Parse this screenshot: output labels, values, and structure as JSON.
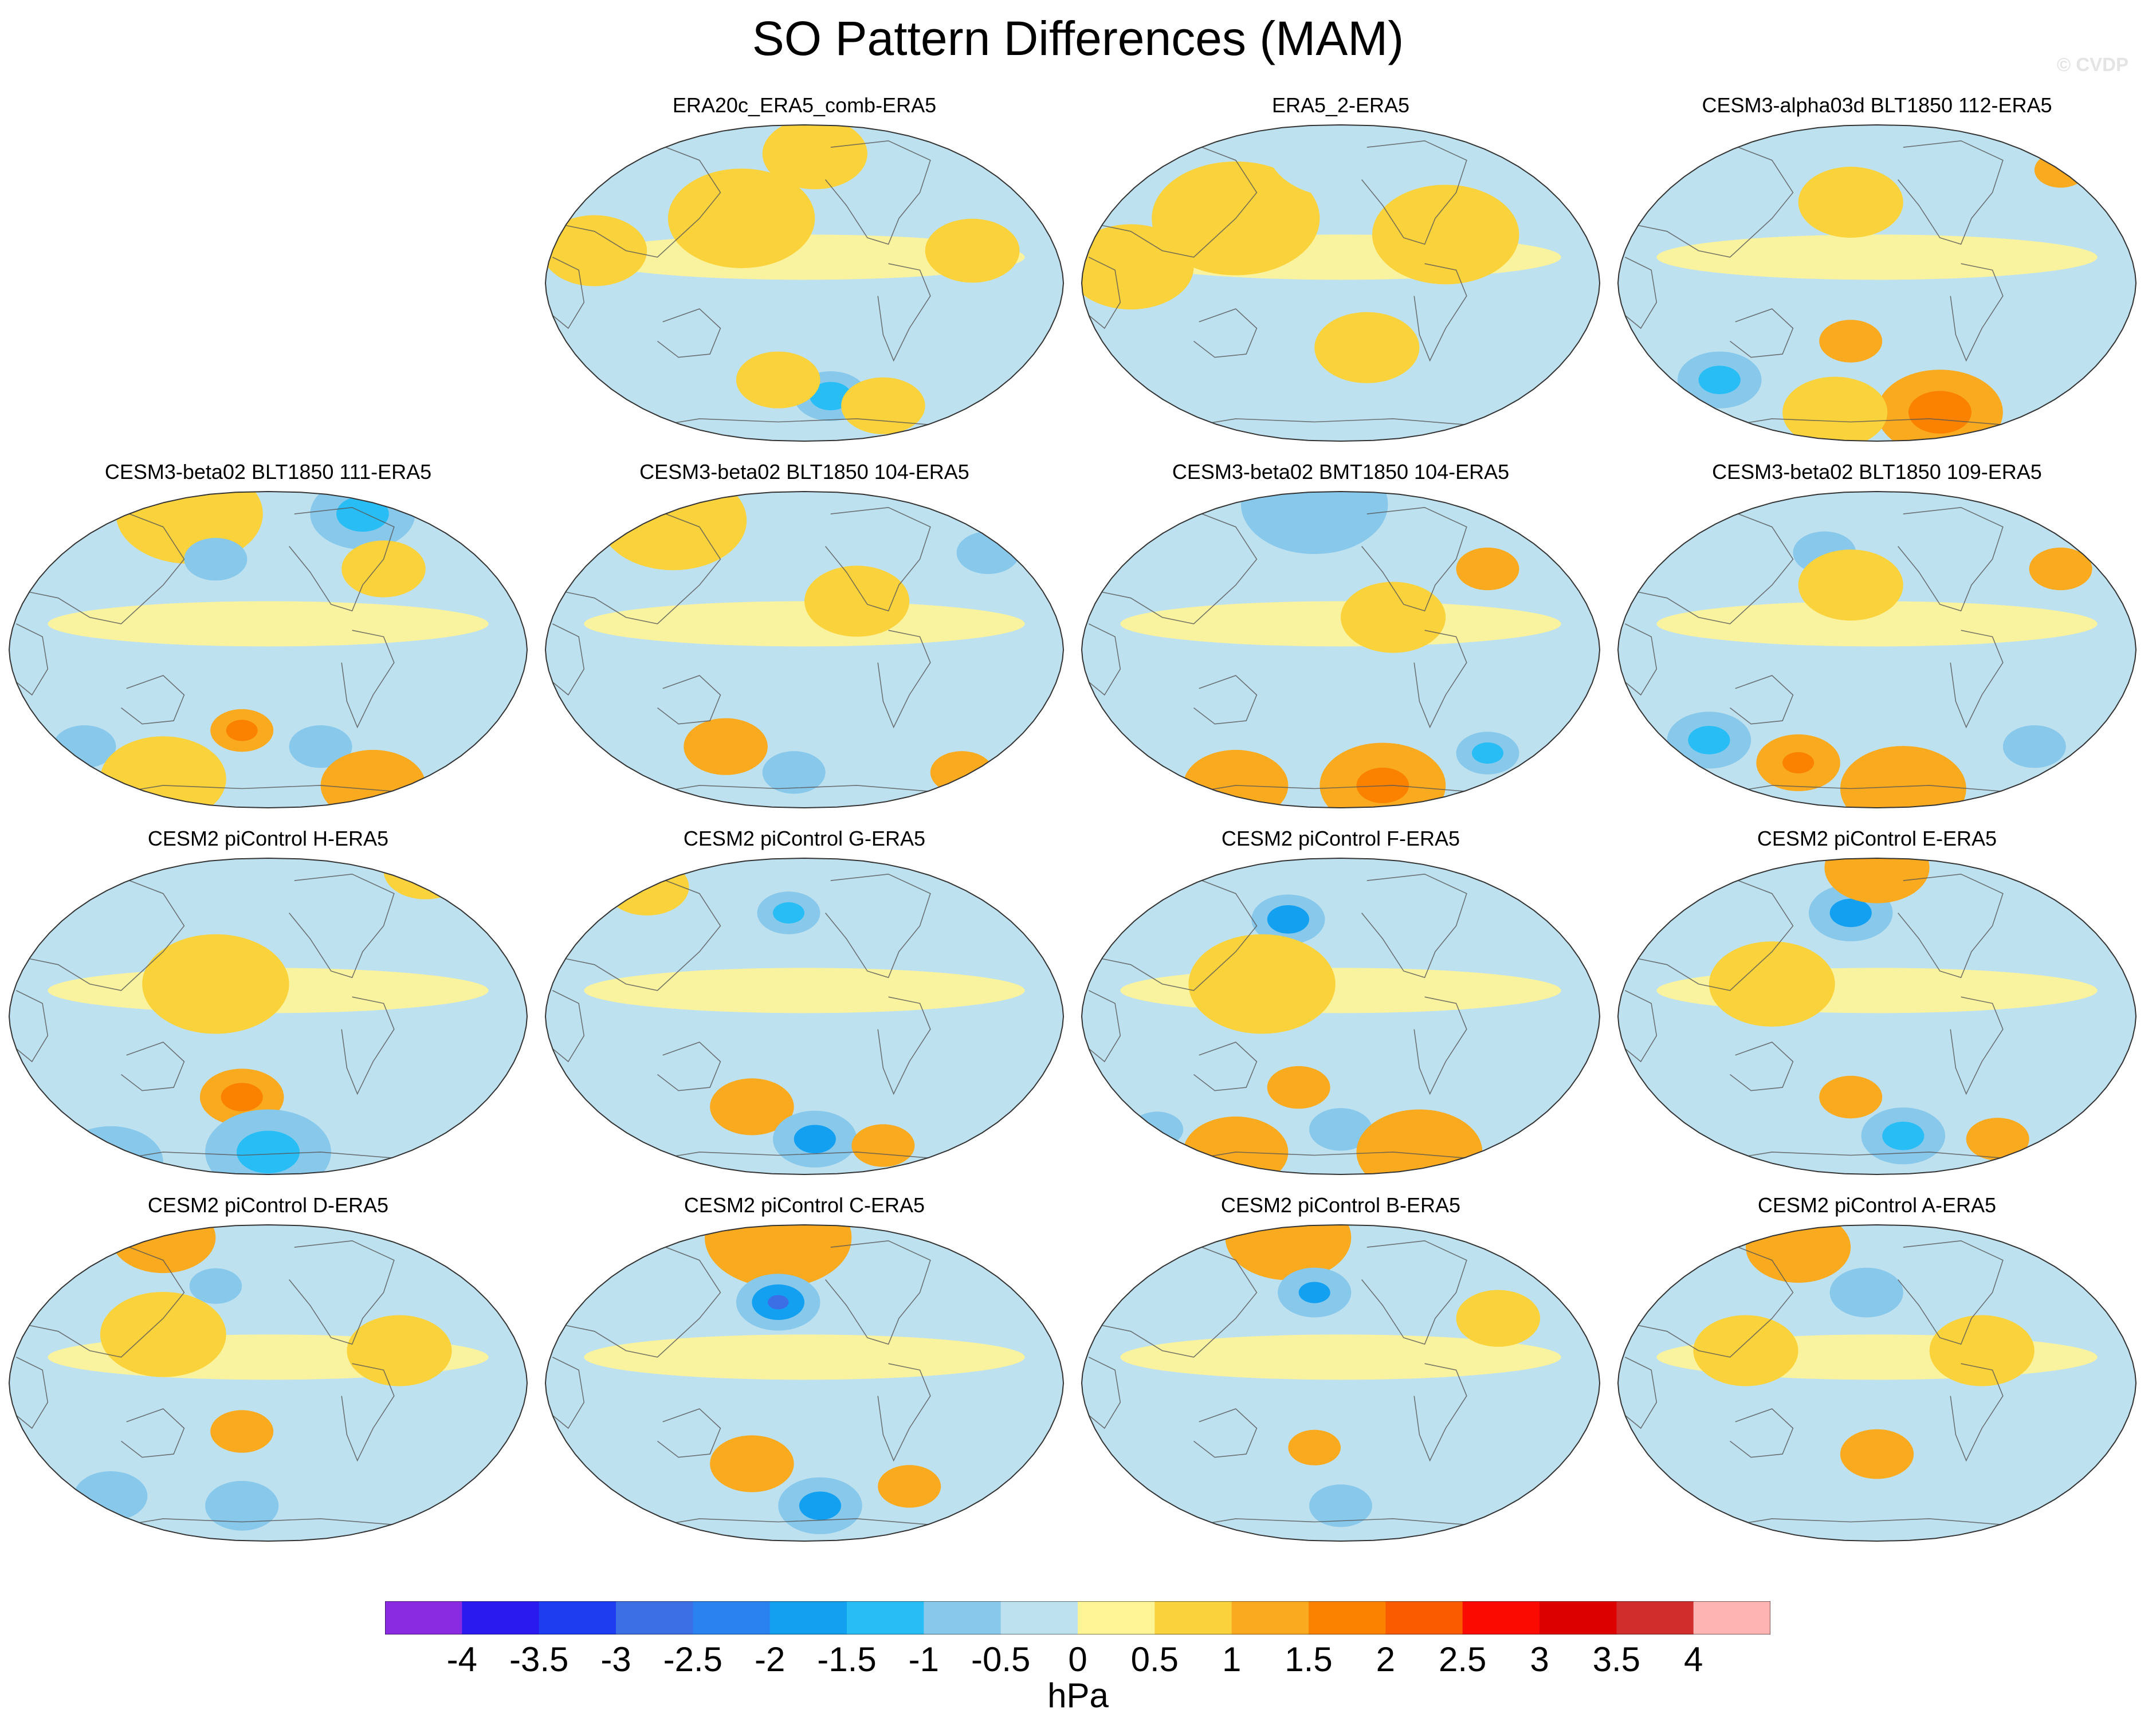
{
  "title": "SO Pattern Differences (MAM)",
  "credit": "© CVDP",
  "chart_data": {
    "type": "map",
    "projection": "Robinson (Pacific-centered)",
    "variable": "SLP pattern difference",
    "units": "hPa",
    "panels": [
      {
        "title": "ERA20c_ERA5_comb-ERA5",
        "blobs": [
          {
            "lon_frac": 0.1,
            "lat_frac": 0.4,
            "value": 0.5,
            "r": 0.1
          },
          {
            "lon_frac": 0.38,
            "lat_frac": 0.3,
            "value": 0.5,
            "r": 0.14
          },
          {
            "lon_frac": 0.52,
            "lat_frac": 0.1,
            "value": 0.5,
            "r": 0.1
          },
          {
            "lon_frac": 0.82,
            "lat_frac": 0.4,
            "value": 0.5,
            "r": 0.09
          },
          {
            "lon_frac": 0.55,
            "lat_frac": 0.85,
            "value": -1.0,
            "r": 0.07
          },
          {
            "lon_frac": 0.55,
            "lat_frac": 0.85,
            "value": -1.5,
            "r": 0.04
          },
          {
            "lon_frac": 0.65,
            "lat_frac": 0.88,
            "value": 0.5,
            "r": 0.08
          },
          {
            "lon_frac": 0.45,
            "lat_frac": 0.8,
            "value": 0.5,
            "r": 0.08
          }
        ]
      },
      {
        "title": "ERA5_2-ERA5",
        "blobs": [
          {
            "lon_frac": 0.3,
            "lat_frac": 0.3,
            "value": 0.5,
            "r": 0.16
          },
          {
            "lon_frac": 0.7,
            "lat_frac": 0.35,
            "value": 0.5,
            "r": 0.14
          },
          {
            "lon_frac": 0.1,
            "lat_frac": 0.45,
            "value": 0.5,
            "r": 0.12
          },
          {
            "lon_frac": 0.5,
            "lat_frac": 0.08,
            "value": -0.5,
            "r": 0.14
          },
          {
            "lon_frac": 0.55,
            "lat_frac": 0.7,
            "value": 0.5,
            "r": 0.1
          }
        ]
      },
      {
        "title": "CESM3-alpha03d BLT1850 112-ERA5",
        "blobs": [
          {
            "lon_frac": 0.45,
            "lat_frac": 0.25,
            "value": 0.5,
            "r": 0.1
          },
          {
            "lon_frac": 0.2,
            "lat_frac": 0.8,
            "value": -1.0,
            "r": 0.08
          },
          {
            "lon_frac": 0.2,
            "lat_frac": 0.8,
            "value": -1.5,
            "r": 0.04
          },
          {
            "lon_frac": 0.62,
            "lat_frac": 0.9,
            "value": 1.0,
            "r": 0.12
          },
          {
            "lon_frac": 0.62,
            "lat_frac": 0.9,
            "value": 1.5,
            "r": 0.06
          },
          {
            "lon_frac": 0.42,
            "lat_frac": 0.9,
            "value": 0.5,
            "r": 0.1
          },
          {
            "lon_frac": 0.75,
            "lat_frac": 0.08,
            "value": -0.5,
            "r": 0.1
          },
          {
            "lon_frac": 0.85,
            "lat_frac": 0.15,
            "value": 1.0,
            "r": 0.05
          },
          {
            "lon_frac": 0.45,
            "lat_frac": 0.68,
            "value": 1.0,
            "r": 0.06
          }
        ]
      },
      {
        "title": "CESM3-beta02 BLT1850 111-ERA5",
        "blobs": [
          {
            "lon_frac": 0.35,
            "lat_frac": 0.08,
            "value": 0.5,
            "r": 0.14
          },
          {
            "lon_frac": 0.68,
            "lat_frac": 0.08,
            "value": -1.0,
            "r": 0.1
          },
          {
            "lon_frac": 0.68,
            "lat_frac": 0.08,
            "value": -1.5,
            "r": 0.05
          },
          {
            "lon_frac": 0.4,
            "lat_frac": 0.22,
            "value": -1.0,
            "r": 0.06
          },
          {
            "lon_frac": 0.45,
            "lat_frac": 0.75,
            "value": 1.0,
            "r": 0.06
          },
          {
            "lon_frac": 0.45,
            "lat_frac": 0.75,
            "value": 1.5,
            "r": 0.03
          },
          {
            "lon_frac": 0.15,
            "lat_frac": 0.8,
            "value": -1.0,
            "r": 0.06
          },
          {
            "lon_frac": 0.6,
            "lat_frac": 0.8,
            "value": -1.0,
            "r": 0.06
          },
          {
            "lon_frac": 0.7,
            "lat_frac": 0.92,
            "value": 1.0,
            "r": 0.1
          },
          {
            "lon_frac": 0.3,
            "lat_frac": 0.9,
            "value": 0.5,
            "r": 0.12
          },
          {
            "lon_frac": 0.72,
            "lat_frac": 0.25,
            "value": 0.5,
            "r": 0.08
          }
        ]
      },
      {
        "title": "CESM3-beta02 BLT1850 104-ERA5",
        "blobs": [
          {
            "lon_frac": 0.25,
            "lat_frac": 0.1,
            "value": 1.0,
            "r": 0.08
          },
          {
            "lon_frac": 0.25,
            "lat_frac": 0.1,
            "value": 0.5,
            "r": 0.14
          },
          {
            "lon_frac": 0.85,
            "lat_frac": 0.2,
            "value": -1.0,
            "r": 0.06
          },
          {
            "lon_frac": 0.35,
            "lat_frac": 0.8,
            "value": 1.0,
            "r": 0.08
          },
          {
            "lon_frac": 0.48,
            "lat_frac": 0.88,
            "value": -1.0,
            "r": 0.06
          },
          {
            "lon_frac": 0.8,
            "lat_frac": 0.88,
            "value": 1.0,
            "r": 0.06
          },
          {
            "lon_frac": 0.6,
            "lat_frac": 0.35,
            "value": 0.5,
            "r": 0.1
          }
        ]
      },
      {
        "title": "CESM3-beta02 BMT1850 104-ERA5",
        "blobs": [
          {
            "lon_frac": 0.45,
            "lat_frac": 0.05,
            "value": -1.0,
            "r": 0.14
          },
          {
            "lon_frac": 0.78,
            "lat_frac": 0.25,
            "value": 1.0,
            "r": 0.06
          },
          {
            "lon_frac": 0.6,
            "lat_frac": 0.4,
            "value": 0.5,
            "r": 0.1
          },
          {
            "lon_frac": 0.15,
            "lat_frac": 0.75,
            "value": -0.5,
            "r": 0.08
          },
          {
            "lon_frac": 0.58,
            "lat_frac": 0.92,
            "value": 1.0,
            "r": 0.12
          },
          {
            "lon_frac": 0.58,
            "lat_frac": 0.92,
            "value": 1.5,
            "r": 0.05
          },
          {
            "lon_frac": 0.3,
            "lat_frac": 0.92,
            "value": 1.0,
            "r": 0.1
          },
          {
            "lon_frac": 0.78,
            "lat_frac": 0.82,
            "value": -1.0,
            "r": 0.06
          },
          {
            "lon_frac": 0.78,
            "lat_frac": 0.82,
            "value": -1.5,
            "r": 0.03
          }
        ]
      },
      {
        "title": "CESM3-beta02 BLT1850 109-ERA5",
        "blobs": [
          {
            "lon_frac": 0.4,
            "lat_frac": 0.2,
            "value": -1.0,
            "r": 0.06
          },
          {
            "lon_frac": 0.85,
            "lat_frac": 0.25,
            "value": 1.0,
            "r": 0.06
          },
          {
            "lon_frac": 0.45,
            "lat_frac": 0.3,
            "value": 0.5,
            "r": 0.1
          },
          {
            "lon_frac": 0.18,
            "lat_frac": 0.78,
            "value": -1.0,
            "r": 0.08
          },
          {
            "lon_frac": 0.18,
            "lat_frac": 0.78,
            "value": -1.5,
            "r": 0.04
          },
          {
            "lon_frac": 0.35,
            "lat_frac": 0.85,
            "value": 1.0,
            "r": 0.08
          },
          {
            "lon_frac": 0.35,
            "lat_frac": 0.85,
            "value": 1.5,
            "r": 0.03
          },
          {
            "lon_frac": 0.55,
            "lat_frac": 0.93,
            "value": 1.0,
            "r": 0.12
          },
          {
            "lon_frac": 0.8,
            "lat_frac": 0.8,
            "value": -1.0,
            "r": 0.06
          }
        ]
      },
      {
        "title": "CESM2 piControl H-ERA5",
        "blobs": [
          {
            "lon_frac": 0.45,
            "lat_frac": 0.75,
            "value": 1.0,
            "r": 0.08
          },
          {
            "lon_frac": 0.45,
            "lat_frac": 0.75,
            "value": 1.5,
            "r": 0.04
          },
          {
            "lon_frac": 0.5,
            "lat_frac": 0.92,
            "value": -1.0,
            "r": 0.12
          },
          {
            "lon_frac": 0.5,
            "lat_frac": 0.92,
            "value": -1.5,
            "r": 0.06
          },
          {
            "lon_frac": 0.2,
            "lat_frac": 0.95,
            "value": -1.0,
            "r": 0.1
          },
          {
            "lon_frac": 0.75,
            "lat_frac": 0.25,
            "value": -0.5,
            "r": 0.08
          },
          {
            "lon_frac": 0.4,
            "lat_frac": 0.4,
            "value": 0.5,
            "r": 0.14
          },
          {
            "lon_frac": 0.8,
            "lat_frac": 0.05,
            "value": 0.5,
            "r": 0.08
          }
        ]
      },
      {
        "title": "CESM2 piControl G-ERA5",
        "blobs": [
          {
            "lon_frac": 0.47,
            "lat_frac": 0.18,
            "value": -1.0,
            "r": 0.06
          },
          {
            "lon_frac": 0.47,
            "lat_frac": 0.18,
            "value": -1.5,
            "r": 0.03
          },
          {
            "lon_frac": 0.2,
            "lat_frac": 0.1,
            "value": 0.5,
            "r": 0.08
          },
          {
            "lon_frac": 0.4,
            "lat_frac": 0.78,
            "value": 1.0,
            "r": 0.08
          },
          {
            "lon_frac": 0.52,
            "lat_frac": 0.88,
            "value": -1.0,
            "r": 0.08
          },
          {
            "lon_frac": 0.52,
            "lat_frac": 0.88,
            "value": -2.0,
            "r": 0.04
          },
          {
            "lon_frac": 0.65,
            "lat_frac": 0.9,
            "value": 1.0,
            "r": 0.06
          },
          {
            "lon_frac": 0.2,
            "lat_frac": 0.85,
            "value": -0.5,
            "r": 0.06
          }
        ]
      },
      {
        "title": "CESM2 piControl F-ERA5",
        "blobs": [
          {
            "lon_frac": 0.4,
            "lat_frac": 0.2,
            "value": -1.0,
            "r": 0.07
          },
          {
            "lon_frac": 0.4,
            "lat_frac": 0.2,
            "value": -2.0,
            "r": 0.04
          },
          {
            "lon_frac": 0.35,
            "lat_frac": 0.4,
            "value": 0.5,
            "r": 0.14
          },
          {
            "lon_frac": 0.8,
            "lat_frac": 0.25,
            "value": -0.5,
            "r": 0.08
          },
          {
            "lon_frac": 0.42,
            "lat_frac": 0.72,
            "value": 1.0,
            "r": 0.06
          },
          {
            "lon_frac": 0.5,
            "lat_frac": 0.85,
            "value": -1.0,
            "r": 0.06
          },
          {
            "lon_frac": 0.65,
            "lat_frac": 0.92,
            "value": 1.0,
            "r": 0.12
          },
          {
            "lon_frac": 0.3,
            "lat_frac": 0.92,
            "value": 1.0,
            "r": 0.1
          },
          {
            "lon_frac": 0.15,
            "lat_frac": 0.85,
            "value": -1.0,
            "r": 0.05
          }
        ]
      },
      {
        "title": "CESM2 piControl E-ERA5",
        "blobs": [
          {
            "lon_frac": 0.45,
            "lat_frac": 0.18,
            "value": -1.0,
            "r": 0.08
          },
          {
            "lon_frac": 0.45,
            "lat_frac": 0.18,
            "value": -2.0,
            "r": 0.04
          },
          {
            "lon_frac": 0.5,
            "lat_frac": 0.04,
            "value": 1.0,
            "r": 0.1
          },
          {
            "lon_frac": 0.45,
            "lat_frac": 0.75,
            "value": 1.0,
            "r": 0.06
          },
          {
            "lon_frac": 0.55,
            "lat_frac": 0.87,
            "value": -1.0,
            "r": 0.08
          },
          {
            "lon_frac": 0.55,
            "lat_frac": 0.87,
            "value": -1.5,
            "r": 0.04
          },
          {
            "lon_frac": 0.73,
            "lat_frac": 0.88,
            "value": 1.0,
            "r": 0.06
          },
          {
            "lon_frac": 0.3,
            "lat_frac": 0.4,
            "value": 0.5,
            "r": 0.12
          }
        ]
      },
      {
        "title": "CESM2 piControl D-ERA5",
        "blobs": [
          {
            "lon_frac": 0.3,
            "lat_frac": 0.05,
            "value": 1.0,
            "r": 0.1
          },
          {
            "lon_frac": 0.4,
            "lat_frac": 0.2,
            "value": -1.0,
            "r": 0.05
          },
          {
            "lon_frac": 0.45,
            "lat_frac": 0.65,
            "value": 1.0,
            "r": 0.06
          },
          {
            "lon_frac": 0.2,
            "lat_frac": 0.85,
            "value": -1.0,
            "r": 0.07
          },
          {
            "lon_frac": 0.45,
            "lat_frac": 0.88,
            "value": -1.0,
            "r": 0.07
          },
          {
            "lon_frac": 0.3,
            "lat_frac": 0.35,
            "value": 0.5,
            "r": 0.12
          },
          {
            "lon_frac": 0.75,
            "lat_frac": 0.4,
            "value": 0.5,
            "r": 0.1
          }
        ]
      },
      {
        "title": "CESM2 piControl C-ERA5",
        "blobs": [
          {
            "lon_frac": 0.45,
            "lat_frac": 0.05,
            "value": 1.0,
            "r": 0.14
          },
          {
            "lon_frac": 0.45,
            "lat_frac": 0.25,
            "value": -1.0,
            "r": 0.08
          },
          {
            "lon_frac": 0.45,
            "lat_frac": 0.25,
            "value": -2.0,
            "r": 0.05
          },
          {
            "lon_frac": 0.45,
            "lat_frac": 0.25,
            "value": -3.0,
            "r": 0.02
          },
          {
            "lon_frac": 0.4,
            "lat_frac": 0.75,
            "value": 1.0,
            "r": 0.08
          },
          {
            "lon_frac": 0.53,
            "lat_frac": 0.88,
            "value": -1.0,
            "r": 0.08
          },
          {
            "lon_frac": 0.53,
            "lat_frac": 0.88,
            "value": -2.0,
            "r": 0.04
          },
          {
            "lon_frac": 0.7,
            "lat_frac": 0.82,
            "value": 1.0,
            "r": 0.06
          },
          {
            "lon_frac": 0.2,
            "lat_frac": 0.85,
            "value": -0.5,
            "r": 0.08
          }
        ]
      },
      {
        "title": "CESM2 piControl B-ERA5",
        "blobs": [
          {
            "lon_frac": 0.4,
            "lat_frac": 0.05,
            "value": 1.0,
            "r": 0.12
          },
          {
            "lon_frac": 0.45,
            "lat_frac": 0.22,
            "value": -1.0,
            "r": 0.07
          },
          {
            "lon_frac": 0.45,
            "lat_frac": 0.22,
            "value": -2.0,
            "r": 0.03
          },
          {
            "lon_frac": 0.45,
            "lat_frac": 0.7,
            "value": 1.0,
            "r": 0.05
          },
          {
            "lon_frac": 0.5,
            "lat_frac": 0.88,
            "value": -1.0,
            "r": 0.06
          },
          {
            "lon_frac": 0.8,
            "lat_frac": 0.3,
            "value": 0.5,
            "r": 0.08
          },
          {
            "lon_frac": 0.2,
            "lat_frac": 0.8,
            "value": -0.5,
            "r": 0.06
          }
        ]
      },
      {
        "title": "CESM2 piControl A-ERA5",
        "blobs": [
          {
            "lon_frac": 0.35,
            "lat_frac": 0.08,
            "value": 1.0,
            "r": 0.1
          },
          {
            "lon_frac": 0.48,
            "lat_frac": 0.22,
            "value": -1.0,
            "r": 0.07
          },
          {
            "lon_frac": 0.5,
            "lat_frac": 0.72,
            "value": 1.0,
            "r": 0.07
          },
          {
            "lon_frac": 0.62,
            "lat_frac": 0.92,
            "value": -0.5,
            "r": 0.08
          },
          {
            "lon_frac": 0.7,
            "lat_frac": 0.4,
            "value": 0.5,
            "r": 0.1
          },
          {
            "lon_frac": 0.25,
            "lat_frac": 0.4,
            "value": 0.5,
            "r": 0.1
          }
        ]
      }
    ],
    "colorbar": {
      "levels": [
        -4,
        -3.5,
        -3,
        -2.5,
        -2,
        -1.5,
        -1,
        -0.5,
        0,
        0.5,
        1,
        1.5,
        2,
        2.5,
        3,
        3.5,
        4
      ],
      "labels": [
        "-4",
        "-3.5",
        "-3",
        "-2.5",
        "-2",
        "-1.5",
        "-1",
        "-0.5",
        "0",
        "0.5",
        "1",
        "1.5",
        "2",
        "2.5",
        "3",
        "3.5",
        "4"
      ],
      "colors": [
        "#8a2be2",
        "#2a1af0",
        "#1e3cf0",
        "#3c6ee6",
        "#2a82f0",
        "#14a0f0",
        "#28bef5",
        "#87c8eb",
        "#bee1f0",
        "#fff596",
        "#fad23c",
        "#faaa1e",
        "#fa8200",
        "#fa5a00",
        "#fa0a00",
        "#dc0000",
        "#d22d2d",
        "#ffb4b4"
      ],
      "units": "hPa"
    }
  }
}
